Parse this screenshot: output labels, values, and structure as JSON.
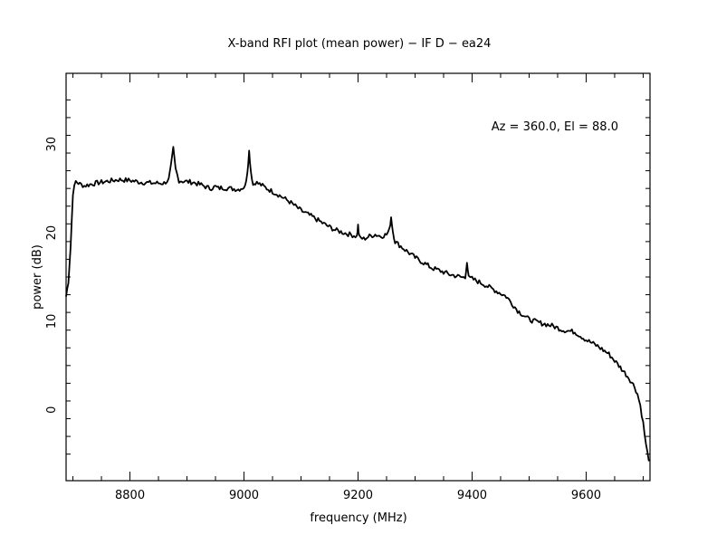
{
  "chart_data": {
    "type": "line",
    "title": "X-band RFI plot (mean power) − IF D − ea24",
    "xlabel": "frequency (MHz)",
    "ylabel": "power (dB)",
    "annotation": "Az = 360.0, El = 88.0",
    "xlim": [
      8688,
      9712
    ],
    "ylim": [
      -8,
      38
    ],
    "x_ticks": [
      8800,
      9000,
      9200,
      9400,
      9600
    ],
    "y_ticks": [
      0,
      10,
      20,
      30
    ],
    "x_tick_labels": [
      "8800",
      "9000",
      "9200",
      "9400",
      "9600"
    ],
    "y_tick_labels": [
      "0",
      "10",
      "20",
      "30"
    ],
    "grid": false,
    "line_color": "#000000",
    "series": [
      {
        "x": [
          8688,
          8692,
          8696,
          8700,
          8705,
          8712,
          8720,
          8740,
          8760,
          8780,
          8800,
          8820,
          8840,
          8860,
          8868,
          8872,
          8876,
          8880,
          8886,
          8895,
          8910,
          8925,
          8940,
          8950,
          8955,
          8962,
          8975,
          8990,
          9002,
          9006,
          9009,
          9012,
          9016,
          9020,
          9030,
          9040,
          9060,
          9080,
          9100,
          9120,
          9140,
          9160,
          9180,
          9198,
          9200,
          9202,
          9210,
          9220,
          9230,
          9240,
          9250,
          9255,
          9258,
          9261,
          9265,
          9280,
          9300,
          9320,
          9330,
          9340,
          9360,
          9380,
          9388,
          9391,
          9394,
          9400,
          9420,
          9440,
          9460,
          9480,
          9500,
          9520,
          9540,
          9560,
          9580,
          9600,
          9620,
          9640,
          9660,
          9675,
          9685,
          9690,
          9695,
          9700,
          9705,
          9710
        ],
        "y": [
          12.8,
          14.5,
          18.5,
          24.5,
          25.8,
          25.5,
          25.3,
          25.6,
          25.8,
          26.0,
          25.9,
          25.7,
          25.6,
          25.6,
          26.0,
          27.5,
          29.5,
          27.2,
          25.9,
          25.8,
          25.7,
          25.4,
          25.0,
          25.2,
          25.0,
          25.1,
          25.0,
          24.9,
          25.2,
          27.0,
          29.2,
          27.0,
          25.4,
          25.7,
          25.4,
          25.0,
          24.3,
          23.5,
          22.5,
          21.8,
          21.0,
          20.3,
          19.9,
          19.6,
          20.8,
          19.5,
          19.3,
          19.6,
          19.8,
          19.6,
          19.8,
          20.3,
          21.8,
          20.2,
          19.0,
          18.2,
          17.2,
          16.4,
          16.0,
          15.8,
          15.3,
          15.0,
          14.9,
          16.8,
          14.9,
          14.8,
          14.2,
          13.5,
          12.8,
          11.2,
          10.2,
          9.8,
          9.5,
          9.0,
          8.8,
          7.9,
          7.2,
          6.3,
          4.8,
          3.6,
          2.6,
          1.8,
          0.5,
          -1.5,
          -4.0,
          -5.8
        ]
      }
    ]
  }
}
